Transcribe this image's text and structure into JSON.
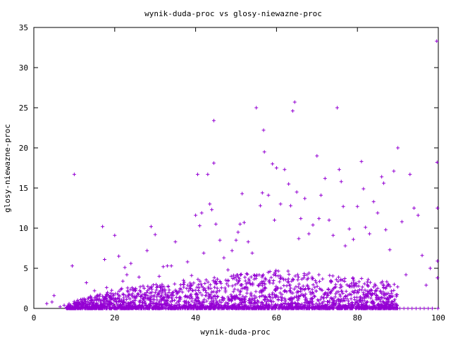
{
  "chart_data": {
    "type": "scatter",
    "title": "wynik-duda-proc vs glosy-niewazne-proc",
    "xlabel": "wynik-duda-proc",
    "ylabel": "glosy-niewazne-proc",
    "xlim": [
      0,
      100
    ],
    "ylim": [
      0,
      35
    ],
    "x_ticks": [
      0,
      20,
      40,
      60,
      80,
      100
    ],
    "y_ticks": [
      0,
      5,
      10,
      15,
      20,
      25,
      30,
      35
    ],
    "x_tick_labels": [
      "0",
      "20",
      "40",
      "60",
      "80",
      "100"
    ],
    "y_tick_labels": [
      "0",
      "5",
      "10",
      "15",
      "20",
      "25",
      "30",
      "35"
    ],
    "marker": "+",
    "color": "#9400d3",
    "grid": false,
    "series": [
      {
        "points": [
          [
            3.2,
            0.6
          ],
          [
            4.5,
            0.8
          ],
          [
            5.0,
            1.6
          ],
          [
            6.5,
            0.2
          ],
          [
            7.5,
            0.4
          ],
          [
            8.5,
            0.3
          ],
          [
            9.5,
            5.3
          ],
          [
            10.0,
            16.7
          ],
          [
            11.0,
            0.5
          ],
          [
            12.0,
            0.8
          ],
          [
            13.0,
            3.2
          ],
          [
            14.0,
            1.5
          ],
          [
            15.0,
            2.2
          ],
          [
            16.0,
            1.0
          ],
          [
            17.0,
            10.2
          ],
          [
            17.5,
            6.1
          ],
          [
            18.0,
            2.6
          ],
          [
            19.0,
            1.9
          ],
          [
            20.0,
            9.1
          ],
          [
            21.0,
            6.5
          ],
          [
            22.0,
            3.4
          ],
          [
            22.5,
            5.1
          ],
          [
            23.0,
            4.2
          ],
          [
            24.0,
            5.6
          ],
          [
            25.0,
            2.2
          ],
          [
            26.0,
            3.9
          ],
          [
            27.0,
            2.8
          ],
          [
            28.0,
            7.2
          ],
          [
            29.0,
            10.2
          ],
          [
            30.0,
            9.2
          ],
          [
            31.0,
            4.0
          ],
          [
            32.0,
            5.2
          ],
          [
            33.0,
            5.3
          ],
          [
            34.0,
            5.3
          ],
          [
            35.0,
            8.3
          ],
          [
            36.0,
            2.1
          ],
          [
            37.0,
            3.5
          ],
          [
            38.0,
            5.8
          ],
          [
            39.0,
            4.1
          ],
          [
            40.0,
            11.6
          ],
          [
            40.5,
            16.7
          ],
          [
            41.0,
            10.3
          ],
          [
            41.5,
            11.9
          ],
          [
            42.0,
            6.9
          ],
          [
            43.0,
            16.7
          ],
          [
            43.5,
            13.0
          ],
          [
            44.0,
            12.3
          ],
          [
            44.5,
            23.4
          ],
          [
            44.5,
            18.1
          ],
          [
            45.0,
            10.5
          ],
          [
            46.0,
            8.5
          ],
          [
            47.0,
            6.3
          ],
          [
            48.0,
            4.8
          ],
          [
            49.0,
            7.2
          ],
          [
            50.0,
            8.5
          ],
          [
            50.5,
            9.5
          ],
          [
            51.0,
            10.5
          ],
          [
            51.5,
            14.3
          ],
          [
            52.0,
            10.7
          ],
          [
            53.0,
            8.3
          ],
          [
            54.0,
            6.9
          ],
          [
            55.0,
            25.0
          ],
          [
            56.0,
            12.8
          ],
          [
            56.5,
            14.4
          ],
          [
            56.8,
            22.2
          ],
          [
            57.0,
            19.5
          ],
          [
            58.0,
            14.1
          ],
          [
            59.0,
            18.0
          ],
          [
            59.5,
            11.0
          ],
          [
            60.0,
            17.5
          ],
          [
            61.0,
            13.0
          ],
          [
            62.0,
            17.3
          ],
          [
            63.0,
            15.5
          ],
          [
            63.5,
            12.8
          ],
          [
            64.0,
            24.6
          ],
          [
            64.5,
            25.7
          ],
          [
            65.0,
            14.5
          ],
          [
            65.5,
            8.7
          ],
          [
            66.0,
            11.2
          ],
          [
            67.0,
            13.7
          ],
          [
            68.0,
            9.3
          ],
          [
            69.0,
            10.4
          ],
          [
            70.0,
            19.0
          ],
          [
            70.5,
            11.2
          ],
          [
            71.0,
            14.1
          ],
          [
            72.0,
            16.2
          ],
          [
            73.0,
            11.0
          ],
          [
            74.0,
            9.1
          ],
          [
            75.0,
            25.0
          ],
          [
            75.5,
            17.3
          ],
          [
            76.0,
            15.8
          ],
          [
            76.5,
            12.7
          ],
          [
            77.0,
            7.8
          ],
          [
            78.0,
            9.9
          ],
          [
            79.0,
            8.6
          ],
          [
            80.0,
            12.7
          ],
          [
            81.0,
            18.3
          ],
          [
            81.5,
            14.9
          ],
          [
            82.0,
            10.1
          ],
          [
            83.0,
            9.3
          ],
          [
            84.0,
            13.3
          ],
          [
            85.0,
            11.9
          ],
          [
            86.0,
            16.4
          ],
          [
            86.5,
            15.6
          ],
          [
            87.0,
            9.8
          ],
          [
            88.0,
            7.3
          ],
          [
            89.0,
            17.1
          ],
          [
            90.0,
            20.0
          ],
          [
            91.0,
            10.8
          ],
          [
            92.0,
            4.2
          ],
          [
            93.0,
            16.7
          ],
          [
            94.0,
            12.5
          ],
          [
            95.0,
            11.6
          ],
          [
            96.0,
            6.6
          ],
          [
            97.0,
            2.9
          ],
          [
            98.0,
            5.0
          ],
          [
            99.6,
            33.3
          ],
          [
            99.7,
            18.2
          ],
          [
            99.8,
            12.5
          ],
          [
            99.8,
            5.9
          ],
          [
            99.8,
            3.8
          ],
          [
            99.9,
            0.0
          ],
          [
            98.5,
            0.0
          ],
          [
            97.5,
            0.0
          ],
          [
            96.5,
            0.0
          ],
          [
            95.5,
            0.0
          ],
          [
            94.5,
            0.0
          ],
          [
            93.5,
            0.0
          ],
          [
            92.5,
            0.0
          ],
          [
            91.5,
            0.0
          ],
          [
            90.5,
            0.0
          ],
          [
            89.5,
            0.0
          ]
        ]
      }
    ]
  }
}
